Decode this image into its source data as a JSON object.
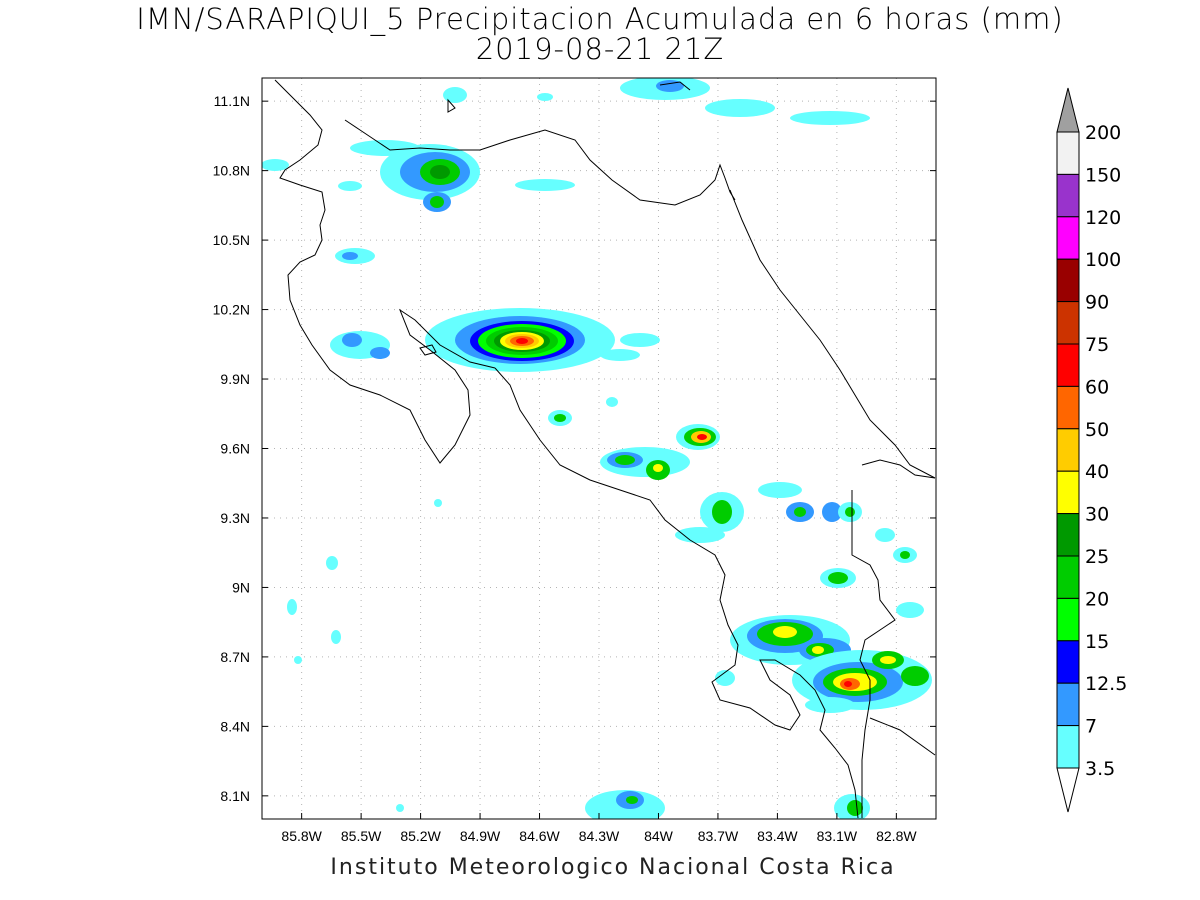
{
  "title": {
    "line1": "IMN/SARAPIQUI_5 Precipitacion Acumulada en 6 horas (mm)",
    "line2": "2019-08-21 21Z"
  },
  "footer": "Instituto Meteorologico Nacional Costa Rica",
  "axes": {
    "lat_ticks": [
      "11.1N",
      "10.8N",
      "10.5N",
      "10.2N",
      "9.9N",
      "9.6N",
      "9.3N",
      "9N",
      "8.7N",
      "8.4N",
      "8.1N"
    ],
    "lon_ticks": [
      "85.8W",
      "85.5W",
      "85.2W",
      "84.9W",
      "84.6W",
      "84.3W",
      "84W",
      "83.7W",
      "83.4W",
      "83.1W",
      "82.8W"
    ]
  },
  "colorbar": {
    "labels": [
      "200",
      "150",
      "120",
      "100",
      "90",
      "75",
      "60",
      "50",
      "40",
      "30",
      "25",
      "20",
      "15",
      "12.5",
      "7",
      "3.5"
    ],
    "colors": [
      "#f2f2f2",
      "#9933cc",
      "#ff00ff",
      "#990000",
      "#cc3300",
      "#ff0000",
      "#ff6600",
      "#ffcc00",
      "#ffff00",
      "#009900",
      "#00cc00",
      "#00ff00",
      "#0000ff",
      "#3399ff",
      "#66ffff"
    ],
    "top_cap": "#a0a0a0",
    "bottom_cap": "#ffffff"
  },
  "map_extent": {
    "lon_min": -86.0,
    "lon_max": -82.6,
    "lat_min": 8.0,
    "lat_max": 11.2
  }
}
